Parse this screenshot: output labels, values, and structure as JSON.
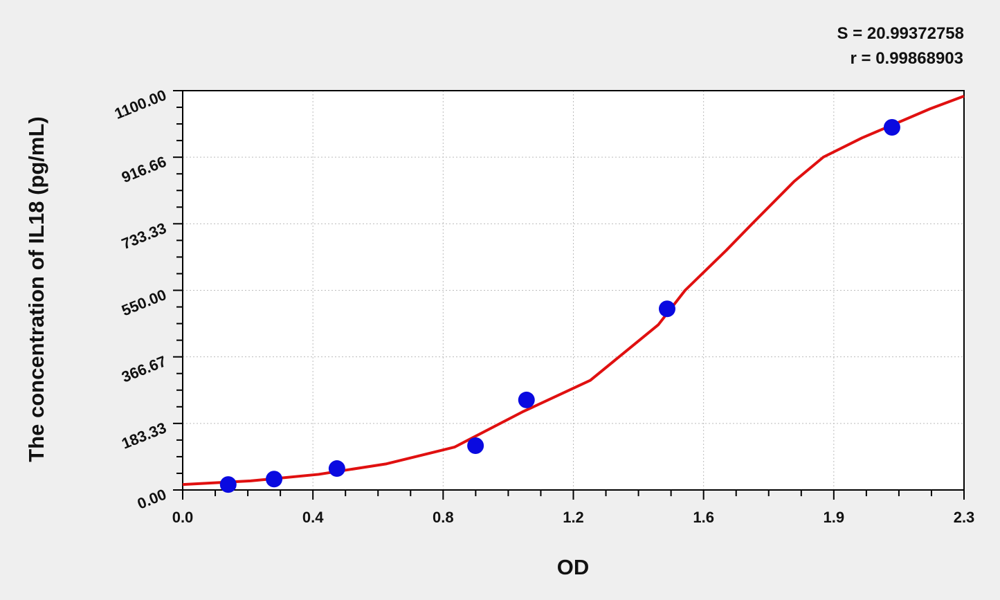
{
  "chart_data": {
    "type": "scatter",
    "title": "",
    "xlabel": "OD",
    "ylabel": "The concentration of IL18 (pg/mL)",
    "xlim": [
      0,
      2.3
    ],
    "ylim": [
      0,
      1100
    ],
    "x_tick_labels": [
      "0.0",
      "0.4",
      "0.8",
      "1.2",
      "1.6",
      "1.9",
      "2.3"
    ],
    "y_tick_labels": [
      "0.00",
      "183.33",
      "366.67",
      "550.00",
      "733.33",
      "916.66",
      "1100.00"
    ],
    "grid": true,
    "annotations": [
      "S = 20.99372758",
      "r = 0.99868903"
    ],
    "colors": {
      "points": "#0a0ae0",
      "curve": "#e01010"
    },
    "series": [
      {
        "type": "scatter",
        "x": [
          0.134,
          0.269,
          0.454,
          0.862,
          1.012,
          1.426,
          2.088
        ],
        "y": [
          15,
          30,
          59,
          122,
          248,
          499,
          999
        ]
      },
      {
        "type": "line",
        "x": [
          0,
          0.2,
          0.4,
          0.6,
          0.8,
          1.0,
          1.2,
          1.4,
          1.479,
          1.6,
          1.676,
          1.8,
          1.886,
          2.0,
          2.088,
          2.2,
          2.3
        ],
        "y": [
          15,
          25,
          43,
          72,
          118,
          215,
          302,
          455,
          550,
          660,
          733,
          850,
          917,
          970,
          1005,
          1050,
          1085
        ]
      }
    ]
  }
}
